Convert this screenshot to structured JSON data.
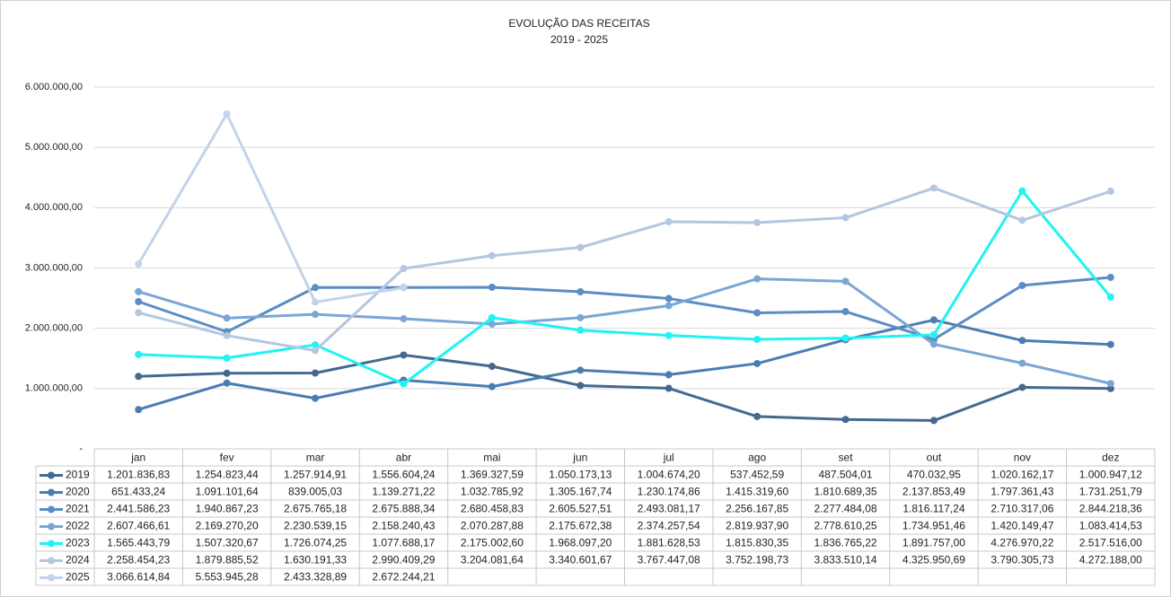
{
  "chart_data": {
    "type": "line",
    "title": "EVOLUÇÃO DAS RECEITAS",
    "subtitle": "2019 - 2025",
    "categories": [
      "jan",
      "fev",
      "mar",
      "abr",
      "mai",
      "jun",
      "jul",
      "ago",
      "set",
      "out",
      "nov",
      "dez"
    ],
    "ylim": [
      0,
      6000000
    ],
    "yticks": [
      {
        "value": 0,
        "label": "-"
      },
      {
        "value": 1000000,
        "label": "1.000.000,00"
      },
      {
        "value": 2000000,
        "label": "2.000.000,00"
      },
      {
        "value": 3000000,
        "label": "3.000.000,00"
      },
      {
        "value": 4000000,
        "label": "4.000.000,00"
      },
      {
        "value": 5000000,
        "label": "5.000.000,00"
      },
      {
        "value": 6000000,
        "label": "6.000.000,00"
      }
    ],
    "grid": true,
    "series": [
      {
        "name": "2019",
        "color": "#44698f",
        "values": [
          1201836.83,
          1254823.44,
          1257914.91,
          1556604.24,
          1369327.59,
          1050173.13,
          1004674.2,
          537452.59,
          487504.01,
          470032.95,
          1020162.17,
          1000947.12
        ],
        "value_labels": [
          "1.201.836,83",
          "1.254.823,44",
          "1.257.914,91",
          "1.556.604,24",
          "1.369.327,59",
          "1.050.173,13",
          "1.004.674,20",
          "537.452,59",
          "487.504,01",
          "470.032,95",
          "1.020.162,17",
          "1.000.947,12"
        ]
      },
      {
        "name": "2020",
        "color": "#4a7db2",
        "values": [
          651433.24,
          1091101.64,
          839005.03,
          1139271.22,
          1032785.92,
          1305167.74,
          1230174.86,
          1415319.6,
          1810689.35,
          2137853.49,
          1797361.43,
          1731251.79
        ],
        "value_labels": [
          "651.433,24",
          "1.091.101,64",
          "839.005,03",
          "1.139.271,22",
          "1.032.785,92",
          "1.305.167,74",
          "1.230.174,86",
          "1.415.319,60",
          "1.810.689,35",
          "2.137.853,49",
          "1.797.361,43",
          "1.731.251,79"
        ]
      },
      {
        "name": "2021",
        "color": "#5b8dc4",
        "values": [
          2441586.23,
          1940867.23,
          2675765.18,
          2675888.34,
          2680458.83,
          2605527.51,
          2493081.17,
          2256167.85,
          2277484.08,
          1816117.24,
          2710317.06,
          2844218.36
        ],
        "value_labels": [
          "2.441.586,23",
          "1.940.867,23",
          "2.675.765,18",
          "2.675.888,34",
          "2.680.458,83",
          "2.605.527,51",
          "2.493.081,17",
          "2.256.167,85",
          "2.277.484,08",
          "1.816.117,24",
          "2.710.317,06",
          "2.844.218,36"
        ]
      },
      {
        "name": "2022",
        "color": "#7aa6d6",
        "values": [
          2607466.61,
          2169270.2,
          2230539.15,
          2158240.43,
          2070287.88,
          2175672.38,
          2374257.54,
          2819937.9,
          2778610.25,
          1734951.46,
          1420149.47,
          1083414.53
        ],
        "value_labels": [
          "2.607.466,61",
          "2.169.270,20",
          "2.230.539,15",
          "2.158.240,43",
          "2.070.287,88",
          "2.175.672,38",
          "2.374.257,54",
          "2.819.937,90",
          "2.778.610,25",
          "1.734.951,46",
          "1.420.149,47",
          "1.083.414,53"
        ]
      },
      {
        "name": "2023",
        "color": "#1ff3f3",
        "values": [
          1565443.79,
          1507320.67,
          1726074.25,
          1077688.17,
          2175002.6,
          1968097.2,
          1881628.53,
          1815830.35,
          1836765.22,
          1891757.0,
          4276970.22,
          2517516.0
        ],
        "value_labels": [
          "1.565.443,79",
          "1.507.320,67",
          "1.726.074,25",
          "1.077.688,17",
          "2.175.002,60",
          "1.968.097,20",
          "1.881.628,53",
          "1.815.830,35",
          "1.836.765,22",
          "1.891.757,00",
          "4.276.970,22",
          "2.517.516,00"
        ]
      },
      {
        "name": "2024",
        "color": "#b4c7e0",
        "values": [
          2258454.23,
          1879885.52,
          1630191.33,
          2990409.29,
          3204081.64,
          3340601.67,
          3767447.08,
          3752198.73,
          3833510.14,
          4325950.69,
          3790305.73,
          4272188.0
        ],
        "value_labels": [
          "2.258.454,23",
          "1.879.885,52",
          "1.630.191,33",
          "2.990.409,29",
          "3.204.081,64",
          "3.340.601,67",
          "3.767.447,08",
          "3.752.198,73",
          "3.833.510,14",
          "4.325.950,69",
          "3.790.305,73",
          "4.272.188,00"
        ]
      },
      {
        "name": "2025",
        "color": "#c3d3e9",
        "values": [
          3066614.84,
          5553945.28,
          2433328.89,
          2672244.21,
          null,
          null,
          null,
          null,
          null,
          null,
          null,
          null
        ],
        "value_labels": [
          "3.066.614,84",
          "5.553.945,28",
          "2.433.328,89",
          "2.672.244,21",
          null,
          null,
          null,
          null,
          null,
          null,
          null,
          null
        ]
      }
    ]
  }
}
